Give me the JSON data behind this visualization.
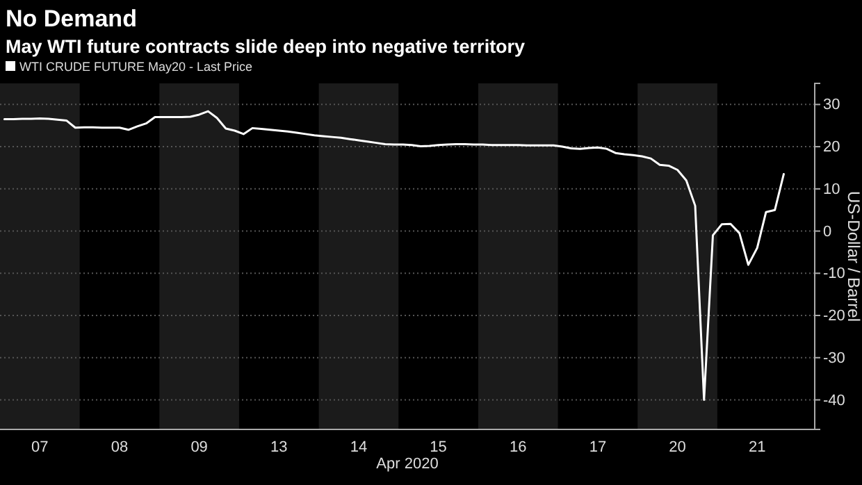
{
  "chart_data": {
    "type": "line",
    "title": "No Demand",
    "subtitle": "May WTI future contracts slide deep into negative territory",
    "xlabel": "Apr 2020",
    "ylabel": "US-Dollar / Barrel",
    "categories": [
      null,
      null,
      null,
      null,
      "07",
      null,
      null,
      null,
      null,
      null,
      null,
      null,
      null,
      "08",
      null,
      null,
      null,
      null,
      null,
      null,
      null,
      null,
      "09",
      null,
      null,
      null,
      null,
      null,
      null,
      null,
      null,
      "13",
      null,
      null,
      null,
      null,
      null,
      null,
      null,
      null,
      "14",
      null,
      null,
      null,
      null,
      null,
      null,
      null,
      null,
      "15",
      null,
      null,
      null,
      null,
      null,
      null,
      null,
      null,
      "16",
      null,
      null,
      null,
      null,
      null,
      null,
      null,
      null,
      "17",
      null,
      null,
      null,
      null,
      null,
      null,
      null,
      null,
      "20",
      null,
      null,
      null,
      null,
      null,
      null,
      null,
      null,
      "21",
      null,
      null,
      null,
      null,
      null,
      null
    ],
    "series": [
      {
        "name": "WTI CRUDE FUTURE May20 - Last Price",
        "color": "#ffffff",
        "values": [
          26.5,
          26.5,
          26.6,
          26.6,
          26.7,
          26.6,
          26.4,
          26.2,
          24.5,
          24.6,
          24.6,
          24.5,
          24.5,
          24.5,
          24.0,
          24.8,
          25.5,
          27,
          27,
          27,
          27,
          27.1,
          27.6,
          28.4,
          26.8,
          24.3,
          23.8,
          23,
          24.4,
          24.2,
          24,
          23.8,
          23.6,
          23.3,
          23,
          22.7,
          22.5,
          22.3,
          22.1,
          21.8,
          21.5,
          21.2,
          20.9,
          20.6,
          20.5,
          20.5,
          20.4,
          20.1,
          20.2,
          20.4,
          20.5,
          20.6,
          20.6,
          20.5,
          20.5,
          20.4,
          20.4,
          20.4,
          20.4,
          20.3,
          20.3,
          20.3,
          20.3,
          20.0,
          19.6,
          19.5,
          19.7,
          19.8,
          19.5,
          18.5,
          18.2,
          18.0,
          17.7,
          17.2,
          15.7,
          15.5,
          14.5,
          12,
          6,
          -40,
          -1,
          1.6,
          1.7,
          -0.5,
          -8,
          -4,
          4.5,
          5,
          13.5,
          null,
          null,
          null
        ]
      }
    ],
    "ylim": [
      -47,
      35
    ],
    "yticks": [
      -40,
      -30,
      -20,
      -10,
      0,
      10,
      20,
      30
    ],
    "grid": "y",
    "legend": "top left",
    "line_style": "solid",
    "marker": "none"
  }
}
